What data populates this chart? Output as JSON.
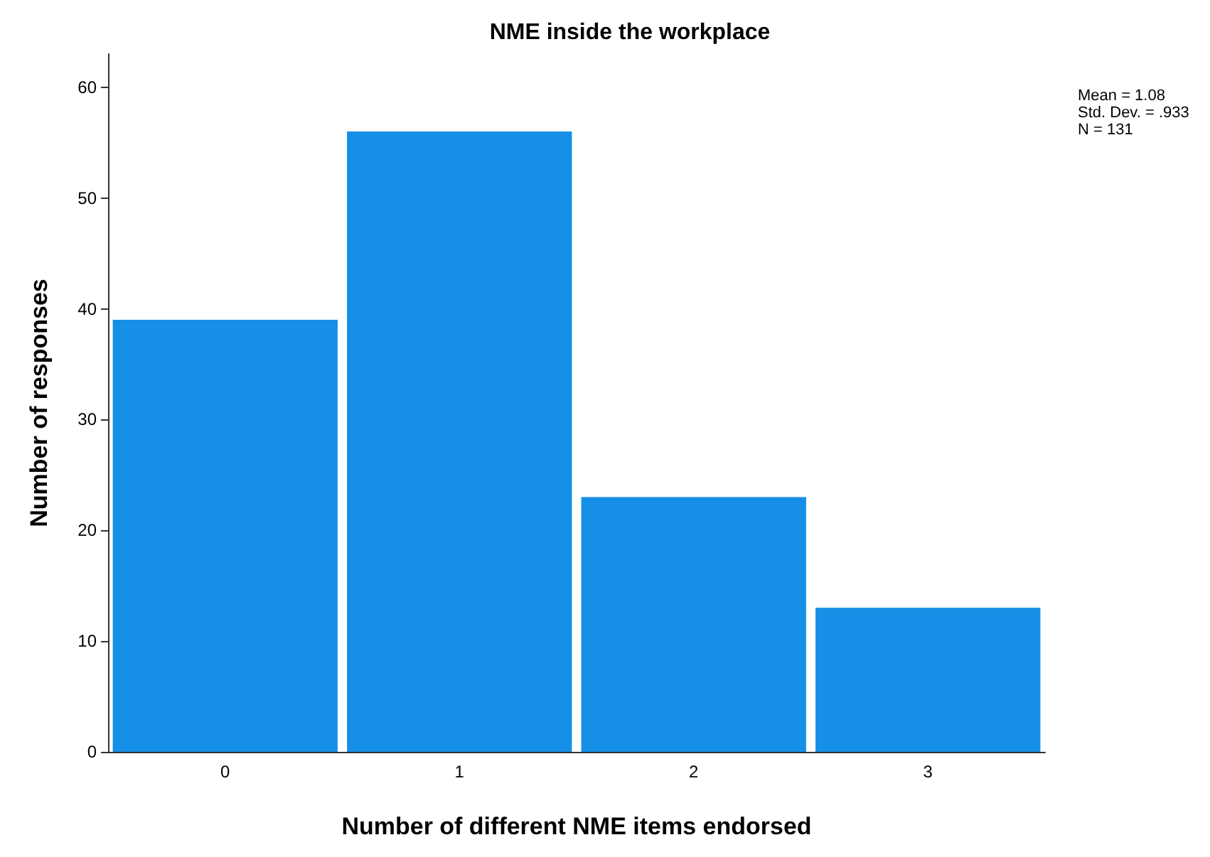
{
  "chart_data": {
    "type": "bar",
    "title": "NME inside the workplace",
    "xlabel": "Number of different NME items endorsed",
    "ylabel": "Number of responses",
    "categories": [
      "0",
      "1",
      "2",
      "3"
    ],
    "values": [
      39,
      56,
      23,
      13
    ],
    "color": "#1590e6",
    "ylim": [
      0,
      63
    ],
    "yticks": [
      0,
      10,
      20,
      30,
      40,
      50,
      60
    ],
    "grid": false,
    "annotations": [
      "Mean = 1.08",
      "Std. Dev. = .933",
      "N = 131"
    ]
  }
}
